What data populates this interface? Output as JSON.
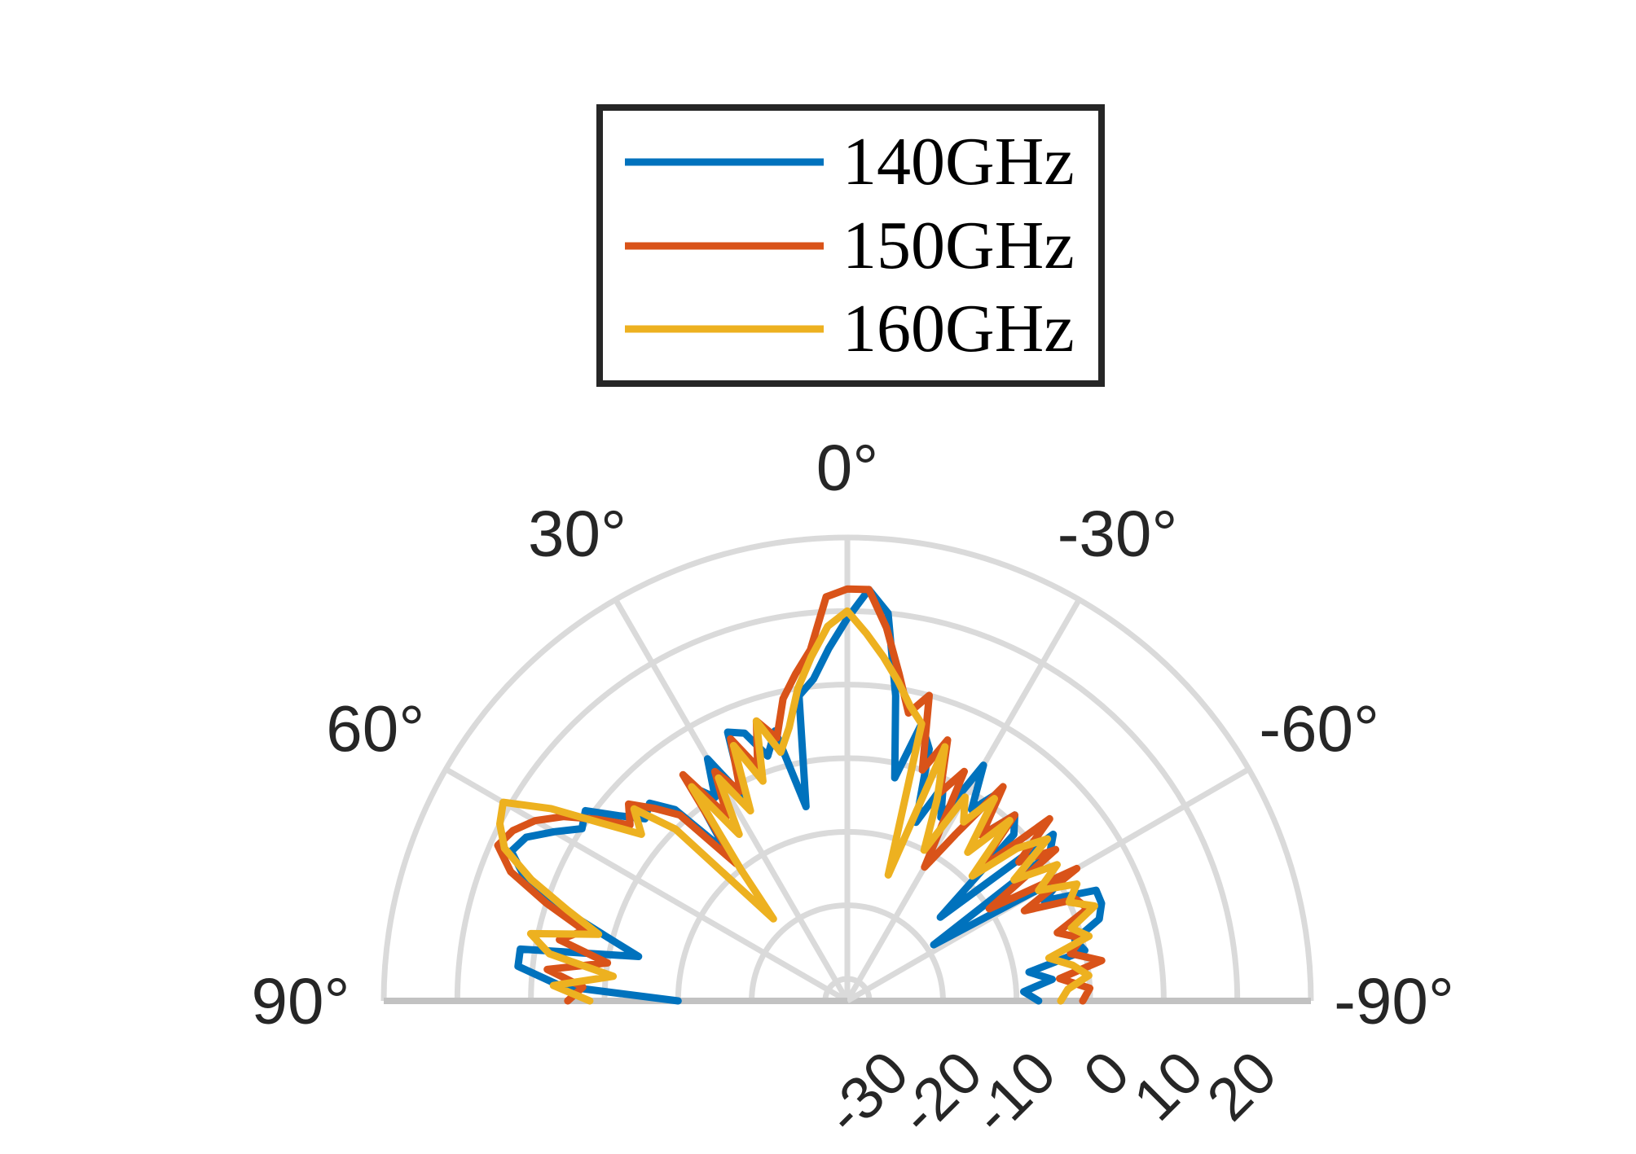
{
  "chart_data": {
    "type": "line",
    "coordinate_system": "polar",
    "theta_zero_location": "top",
    "theta_direction": "counterclockwise",
    "theta_range_deg": [
      -90,
      90
    ],
    "rlim": [
      -43,
      20
    ],
    "grid": true,
    "legend_location": "top",
    "r_grid": [
      -40,
      -30,
      -20,
      -10,
      0,
      10,
      20
    ],
    "theta_ticks": [
      {
        "value": -90,
        "label": "-90°"
      },
      {
        "value": -60,
        "label": "-60°"
      },
      {
        "value": -30,
        "label": "-30°"
      },
      {
        "value": 0,
        "label": "0°"
      },
      {
        "value": 30,
        "label": "30°"
      },
      {
        "value": 60,
        "label": "60°"
      },
      {
        "value": 90,
        "label": "90°"
      }
    ],
    "r_ticks": [
      {
        "value": -30,
        "label": "-30"
      },
      {
        "value": -20,
        "label": "-20"
      },
      {
        "value": -10,
        "label": "-10"
      },
      {
        "value": 0,
        "label": "0"
      },
      {
        "value": 10,
        "label": "10"
      },
      {
        "value": 20,
        "label": "20"
      }
    ],
    "theta_deg": [
      -90,
      -87,
      -84,
      -81,
      -78,
      -75,
      -72,
      -69,
      -66,
      -63,
      -60,
      -57,
      -54,
      -51,
      -48,
      -45,
      -42,
      -39,
      -36,
      -33,
      -30,
      -27,
      -24,
      -21,
      -18,
      -15,
      -12,
      -9,
      -6,
      -3,
      0,
      3,
      6,
      9,
      12,
      15,
      18,
      21,
      24,
      27,
      30,
      33,
      36,
      39,
      42,
      45,
      48,
      51,
      54,
      57,
      60,
      63,
      66,
      69,
      72,
      75,
      78,
      81,
      84,
      87,
      90
    ],
    "series": [
      {
        "name": "140GHz",
        "color": "#0072BD",
        "values": [
          -17,
          -19,
          -15,
          -18,
          -10,
          -11,
          -7,
          -6,
          -6,
          -13,
          -9,
          -29,
          -9,
          -7,
          -26,
          -11,
          -9,
          -14,
          -8,
          -12,
          -6,
          -15,
          -11,
          -17,
          -7,
          -4,
          -12,
          -1,
          10,
          13,
          9,
          5,
          1,
          -1,
          -16,
          -5,
          -8,
          -4,
          -3,
          -12,
          -5,
          -10,
          -7,
          -17,
          -8,
          -5,
          -6,
          -3,
          1,
          0,
          3,
          6,
          7,
          4,
          -2,
          -9,
          -14,
          2,
          2,
          -4,
          -20
        ]
      },
      {
        "name": "150GHz",
        "color": "#D95319",
        "values": [
          -11,
          -10,
          -14,
          -8,
          -12,
          -10,
          -13,
          -8,
          -9,
          -16,
          -7,
          -20,
          -8,
          -13,
          -6,
          -18,
          -9,
          -14,
          -7,
          -16,
          -22,
          -8,
          -12,
          -5,
          -10,
          0,
          -3,
          2,
          8,
          13,
          13,
          12,
          5,
          2,
          -1,
          -6,
          -3,
          -9,
          -4,
          -11,
          -7,
          -13,
          -5,
          -19,
          -9,
          -6,
          -3,
          -5,
          -1,
          3,
          6,
          8,
          9,
          6,
          0,
          -6,
          -3,
          -10,
          -2,
          -7,
          -5
        ]
      },
      {
        "name": "160GHz",
        "color": "#EDB120",
        "values": [
          -14,
          -13,
          -10,
          -12,
          -15,
          -9,
          -11,
          -7,
          -10,
          -8,
          -13,
          -9,
          -15,
          -8,
          -12,
          -19,
          -10,
          -17,
          -9,
          -14,
          -11,
          -20,
          -13,
          -6,
          -25,
          -4,
          -2,
          1,
          4,
          7,
          10,
          8,
          4,
          0,
          -5,
          -8,
          -3,
          -11,
          -5,
          -14,
          -8,
          -16,
          -7,
          -20,
          -28,
          -10,
          -4,
          -7,
          -2,
          5,
          11,
          10,
          8,
          3,
          -3,
          -8,
          1,
          -2,
          -11,
          -3,
          -8
        ]
      }
    ]
  },
  "colors": {
    "grid": "#dadada",
    "baseline": "#c2c2c2",
    "axis_text": "#262626",
    "legend_border": "#262626",
    "background": "#ffffff"
  }
}
